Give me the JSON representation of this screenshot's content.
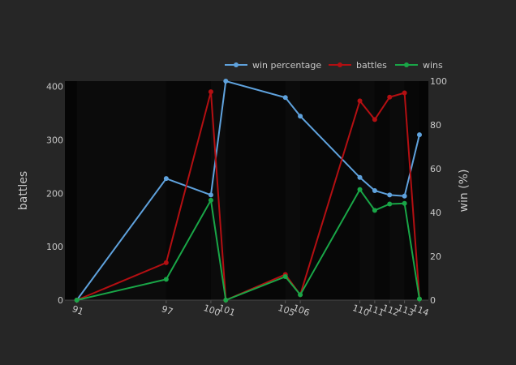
{
  "chart_data": {
    "type": "line",
    "x": [
      91,
      97,
      100,
      101,
      105,
      106,
      110,
      111,
      112,
      113,
      114
    ],
    "x_tick_labels": [
      "91",
      "97",
      "100",
      "101",
      "105",
      "106",
      "110",
      "111",
      "112",
      "113",
      "114"
    ],
    "series": [
      {
        "name": "win percentage",
        "axis": "right",
        "color": "#5fa2dd",
        "values": [
          0,
          55.5,
          48,
          100,
          92.5,
          84,
          56,
          50,
          48,
          47.5,
          75.5
        ]
      },
      {
        "name": "battles",
        "axis": "left",
        "color": "#b30f12",
        "values": [
          0,
          70,
          390,
          0,
          48,
          10,
          373,
          338,
          380,
          388,
          2
        ]
      },
      {
        "name": "wins",
        "axis": "left",
        "color": "#19a647",
        "values": [
          0,
          39,
          187,
          0,
          44,
          10,
          207,
          168,
          180,
          181,
          2
        ]
      }
    ],
    "ylabel": "battles",
    "y2label": "win (%)",
    "ylim": [
      0,
      410
    ],
    "y2lim": [
      0,
      100
    ],
    "yticks": [
      "0",
      "100",
      "200",
      "300",
      "400"
    ],
    "y2ticks": [
      "0",
      "20",
      "40",
      "60",
      "80",
      "100"
    ],
    "legend": "top-right",
    "grid": false
  }
}
